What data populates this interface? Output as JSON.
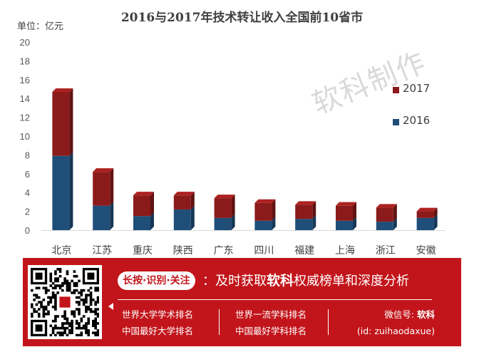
{
  "chart_data": {
    "type": "bar",
    "stacked": true,
    "title": "2016与2017年技术转让收入全国前10省市",
    "unit_label": "单位：亿元",
    "categories": [
      "北京",
      "江苏",
      "重庆",
      "陕西",
      "广东",
      "四川",
      "福建",
      "上海",
      "浙江",
      "安徽"
    ],
    "series": [
      {
        "name": "2016",
        "color": "#1f4e79",
        "values": [
          7.9,
          2.6,
          1.5,
          2.2,
          1.3,
          1.0,
          1.2,
          1.0,
          0.9,
          1.3
        ]
      },
      {
        "name": "2017",
        "color": "#8b1a1a",
        "values": [
          6.8,
          3.6,
          2.2,
          1.5,
          2.1,
          1.9,
          1.5,
          1.6,
          1.5,
          0.7
        ]
      }
    ],
    "ylim": [
      0,
      20
    ],
    "yticks": [
      "0",
      "2",
      "4",
      "6",
      "8",
      "10",
      "12",
      "14",
      "16",
      "18",
      "20"
    ],
    "legend_position": "right",
    "grid": false
  },
  "watermark": "软科制作",
  "banner": {
    "pill_text": "长按·识别·关注",
    "tagline_prefix": "：及时获取",
    "tagline_brand": "软科",
    "tagline_suffix": "权威榜单和深度分析",
    "col1": [
      "世界大学学术排名",
      "中国最好大学排名"
    ],
    "col2": [
      "世界一流学科排名",
      "中国最好学科排名"
    ],
    "wechat_label": "微信号: ",
    "wechat_name": "软科",
    "wechat_id": "(id: zuihaodaxue)",
    "colors": {
      "banner_bg": "#c2151b",
      "text": "#ffffff"
    }
  }
}
